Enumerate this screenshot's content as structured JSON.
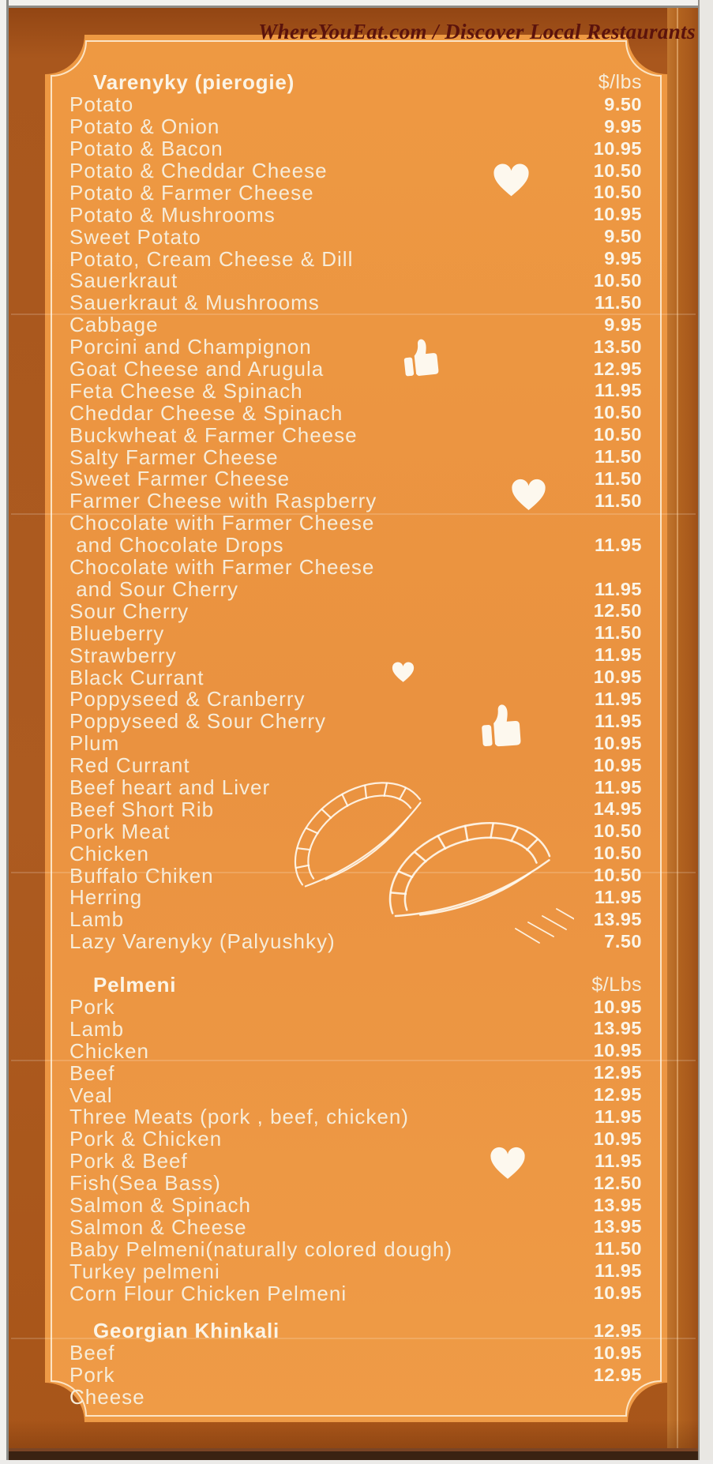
{
  "header": {
    "site_tag": "WhereYouEat.com / Discover Local Restaurants"
  },
  "menu": {
    "sections": [
      {
        "title": "Varenyky (pierogie)",
        "unit": "$/lbs",
        "items": [
          {
            "name": "Potato",
            "price": "9.50"
          },
          {
            "name": "Potato & Onion",
            "price": "9.95"
          },
          {
            "name": "Potato & Bacon",
            "price": "10.95"
          },
          {
            "name": "Potato & Cheddar Cheese",
            "price": "10.50",
            "icon": "heart-icon"
          },
          {
            "name": "Potato & Farmer Cheese",
            "price": "10.50"
          },
          {
            "name": "Potato & Mushrooms",
            "price": "10.95"
          },
          {
            "name": "Sweet Potato",
            "price": "9.50"
          },
          {
            "name": "Potato, Cream Cheese & Dill",
            "price": "9.95"
          },
          {
            "name": "Sauerkraut",
            "price": "10.50"
          },
          {
            "name": "Sauerkraut & Mushrooms",
            "price": "11.50"
          },
          {
            "name": "Cabbage",
            "price": "9.95"
          },
          {
            "name": "Porcini and Champignon",
            "price": "13.50",
            "icon": "thumbs-up-icon"
          },
          {
            "name": "Goat Cheese and Arugula",
            "price": "12.95"
          },
          {
            "name": "Feta Cheese & Spinach",
            "price": "11.95"
          },
          {
            "name": "Cheddar Cheese & Spinach",
            "price": "10.50"
          },
          {
            "name": "Buckwheat & Farmer Cheese",
            "price": "10.50"
          },
          {
            "name": "Salty Farmer Cheese",
            "price": "11.50"
          },
          {
            "name": "Sweet Farmer Cheese",
            "price": "11.50"
          },
          {
            "name": "Farmer Cheese with Raspberry",
            "price": "11.50",
            "icon": "heart-icon"
          },
          {
            "name": "Chocolate with Farmer Cheese",
            "name2": " and Chocolate Drops",
            "price": "11.95"
          },
          {
            "name": "Chocolate with Farmer Cheese",
            "name2": " and Sour Cherry",
            "price": "11.95"
          },
          {
            "name": "Sour Cherry",
            "price": "12.50"
          },
          {
            "name": "Blueberry",
            "price": "11.50"
          },
          {
            "name": "Strawberry",
            "price": "11.95",
            "icon": "heart-icon"
          },
          {
            "name": "Black Currant",
            "price": "10.95"
          },
          {
            "name": "Poppyseed & Cranberry",
            "price": "11.95"
          },
          {
            "name": "Poppyseed & Sour Cherry",
            "price": "11.95",
            "icon": "thumbs-up-icon"
          },
          {
            "name": "Plum",
            "price": "10.95"
          },
          {
            "name": "Red Currant",
            "price": "10.95"
          },
          {
            "name": "Beef heart and Liver",
            "price": "11.95"
          },
          {
            "name": "Beef Short Rib",
            "price": "14.95"
          },
          {
            "name": "Pork Meat",
            "price": "10.50"
          },
          {
            "name": "Chicken",
            "price": "10.50"
          },
          {
            "name": "Buffalo Chiken",
            "price": "10.50"
          },
          {
            "name": "Herring",
            "price": "11.95"
          },
          {
            "name": "Lamb",
            "price": "13.95"
          },
          {
            "name": "Lazy Varenyky (Palyushky)",
            "price": "7.50"
          }
        ]
      },
      {
        "title": "Pelmeni",
        "unit": "$/Lbs",
        "items": [
          {
            "name": "Pork",
            "price": "10.95"
          },
          {
            "name": "Lamb",
            "price": "13.95"
          },
          {
            "name": "Chicken",
            "price": "10.95"
          },
          {
            "name": "Beef",
            "price": "12.95"
          },
          {
            "name": "Veal",
            "price": "12.95"
          },
          {
            "name": "Three Meats (pork , beef, chicken)",
            "price": "11.95"
          },
          {
            "name": "Pork & Chicken",
            "price": "10.95"
          },
          {
            "name": "Pork & Beef",
            "price": "11.95",
            "icon": "heart-icon"
          },
          {
            "name": "Fish(Sea Bass)",
            "price": "12.50"
          },
          {
            "name": "Salmon & Spinach",
            "price": "13.95"
          },
          {
            "name": "Salmon & Cheese",
            "price": "13.95"
          },
          {
            "name": "Baby Pelmeni(naturally colored dough)",
            "price": "11.50"
          },
          {
            "name": "Turkey pelmeni",
            "price": "11.95"
          },
          {
            "name": "Corn Flour Chicken Pelmeni",
            "price": "10.95"
          }
        ]
      },
      {
        "title": "Georgian Khinkali",
        "unit": "",
        "title_price": "12.95",
        "items": [
          {
            "name": "Beef",
            "price": "10.95"
          },
          {
            "name": "Pork",
            "price": "12.95"
          },
          {
            "name": "Cheese",
            "price": ""
          }
        ]
      }
    ]
  },
  "decorations": {
    "heart_stamp_rows": [
      "Potato & Cheddar Cheese",
      "Farmer Cheese with Raspberry",
      "Strawberry",
      "Pork & Beef"
    ],
    "thumbs_up_stamp_rows": [
      "Porcini and Champignon",
      "Poppyseed & Sour Cherry"
    ],
    "sketch": "pierogi line drawing"
  },
  "colors": {
    "card_orange": "#ec9542",
    "background_dark_orange": "#ad5b20",
    "cream_text": "#f6ecd9",
    "tagline_maroon": "#5b130c",
    "border_line": "#fdf6e6",
    "bottom_strip_brown": "#3a2212"
  }
}
